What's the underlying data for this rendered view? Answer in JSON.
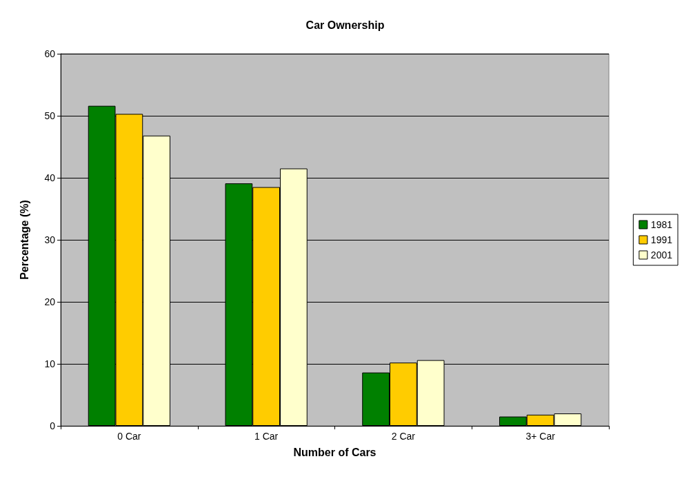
{
  "chart_data": {
    "type": "bar",
    "title": "Car Ownership",
    "xlabel": "Number of Cars",
    "ylabel": "Percentage (%)",
    "categories": [
      "0 Car",
      "1 Car",
      "2 Car",
      "3+ Car"
    ],
    "series": [
      {
        "name": "1981",
        "color": "#008000",
        "values": [
          51.6,
          39.1,
          8.6,
          1.5
        ]
      },
      {
        "name": "1991",
        "color": "#ffcc00",
        "values": [
          50.3,
          38.5,
          10.2,
          1.8
        ]
      },
      {
        "name": "2001",
        "color": "#ffffcc",
        "values": [
          46.8,
          41.5,
          10.6,
          2.0
        ]
      }
    ],
    "ylim": [
      0,
      60
    ],
    "yticks": [
      0,
      10,
      20,
      30,
      40,
      50,
      60
    ],
    "grid": "y",
    "legend": "right"
  }
}
